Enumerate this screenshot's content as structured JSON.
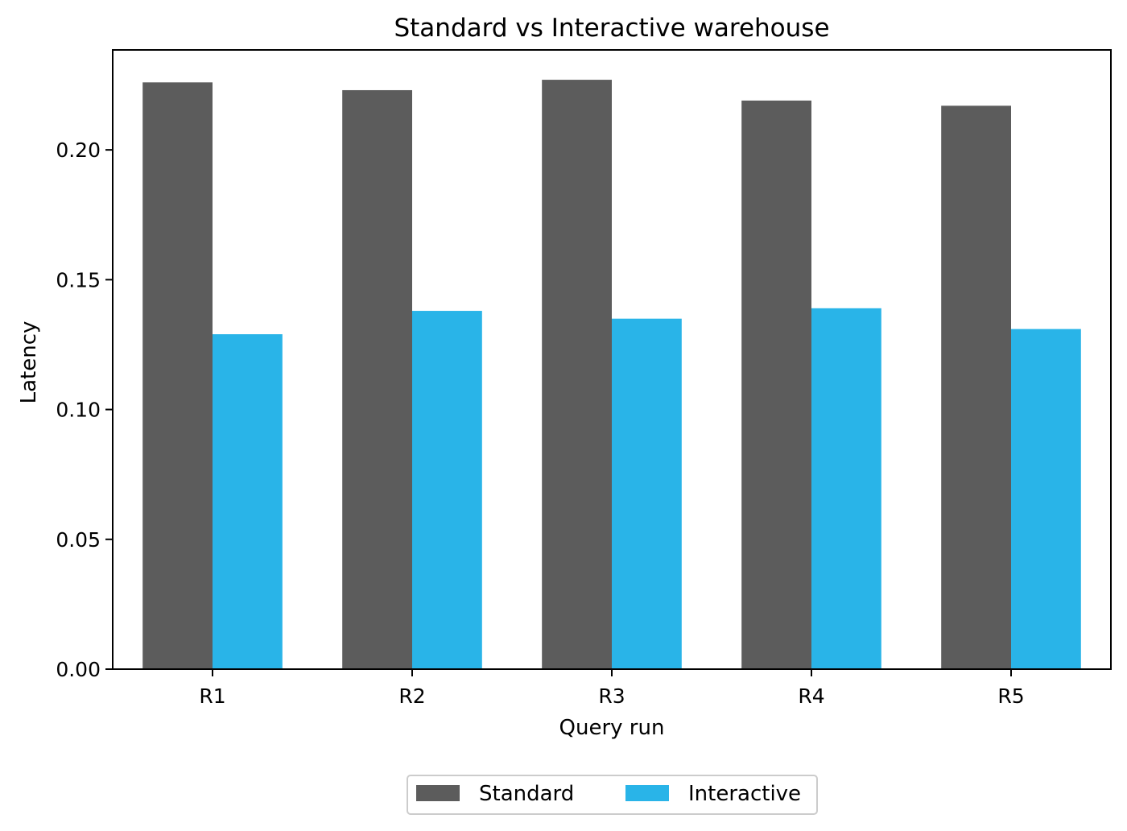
{
  "chart_data": {
    "type": "bar",
    "title": "Standard vs Interactive warehouse",
    "xlabel": "Query run",
    "ylabel": "Latency",
    "categories": [
      "R1",
      "R2",
      "R3",
      "R4",
      "R5"
    ],
    "series": [
      {
        "name": "Standard",
        "color": "#5c5c5c",
        "values": [
          0.226,
          0.223,
          0.227,
          0.219,
          0.217
        ]
      },
      {
        "name": "Interactive",
        "color": "#29b4e8",
        "values": [
          0.129,
          0.138,
          0.135,
          0.139,
          0.131
        ]
      }
    ],
    "ylim": [
      0,
      0.2385
    ],
    "yticks": [
      "0.00",
      "0.05",
      "0.10",
      "0.15",
      "0.20"
    ],
    "grid": false,
    "legend_position": "bottom-center"
  }
}
